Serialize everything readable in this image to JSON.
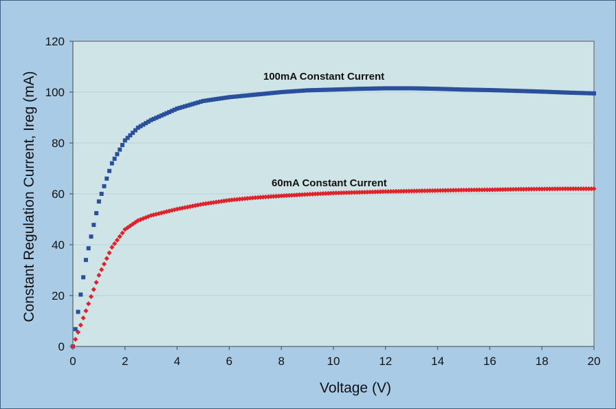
{
  "chart_data": {
    "type": "scatter",
    "title": "",
    "xlabel": "Voltage (V)",
    "ylabel": "Constant Regulation Current, Ireg (mA)",
    "xlim": [
      0,
      20
    ],
    "ylim": [
      0,
      120
    ],
    "x_ticks": [
      "0",
      "2",
      "4",
      "6",
      "8",
      "10",
      "12",
      "14",
      "16",
      "18",
      "20"
    ],
    "y_ticks": [
      "0",
      "20",
      "40",
      "60",
      "80",
      "100",
      "120"
    ],
    "grid": "horizontal",
    "colors": {
      "outer_background": "#a9cbe6",
      "plot_background": "#cfe4e6",
      "series_100mA": "#2a4f9c",
      "series_60mA": "#e0222a"
    },
    "series": [
      {
        "name": "100mA Constant Current",
        "marker": "square",
        "x": [
          0,
          0.5,
          1,
          1.5,
          2,
          2.5,
          3,
          4,
          5,
          6,
          7,
          8,
          9,
          10,
          11,
          12,
          13,
          14,
          15,
          16,
          17,
          18,
          19,
          20
        ],
        "y": [
          0,
          34,
          57,
          72,
          81,
          86,
          89,
          93.5,
          96.5,
          98,
          99,
          100,
          100.7,
          101,
          101.3,
          101.5,
          101.5,
          101.3,
          101,
          100.8,
          100.5,
          100.2,
          99.8,
          99.5
        ]
      },
      {
        "name": "60mA Constant Current",
        "marker": "diamond",
        "x": [
          0,
          0.5,
          1,
          1.5,
          2,
          2.5,
          3,
          4,
          5,
          6,
          7,
          8,
          9,
          10,
          11,
          12,
          13,
          14,
          15,
          16,
          17,
          18,
          19,
          20
        ],
        "y": [
          0,
          14,
          28,
          39,
          46,
          49.5,
          51.5,
          54,
          56,
          57.5,
          58.5,
          59.2,
          59.8,
          60.3,
          60.6,
          60.9,
          61.1,
          61.3,
          61.5,
          61.6,
          61.8,
          61.9,
          62,
          62
        ]
      }
    ]
  }
}
